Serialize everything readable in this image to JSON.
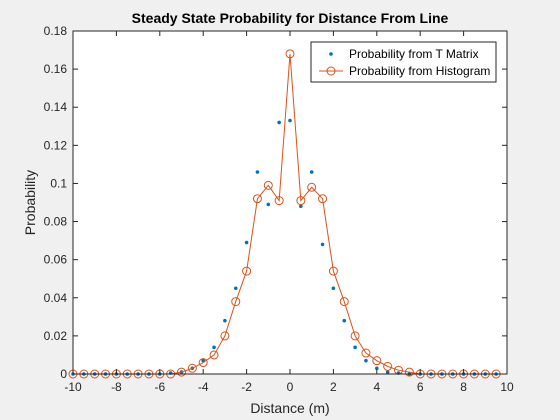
{
  "chart_data": {
    "type": "line",
    "title": "Steady State Probability for Distance From Line",
    "xlabel": "Distance (m)",
    "ylabel": "Probability",
    "xlim": [
      -10,
      10
    ],
    "ylim": [
      0,
      0.18
    ],
    "xticks": [
      -10,
      -8,
      -6,
      -4,
      -2,
      0,
      2,
      4,
      6,
      8,
      10
    ],
    "yticks": [
      0,
      0.02,
      0.04,
      0.06,
      0.08,
      0.1,
      0.12,
      0.14,
      0.16,
      0.18
    ],
    "legend_position": "top-right",
    "series": [
      {
        "name": "Probability from T Matrix",
        "style": "dots",
        "color": "#0072bd",
        "x": [
          -10,
          -9.5,
          -9,
          -8.5,
          -8,
          -7.5,
          -7,
          -6.5,
          -6,
          -5.5,
          -5,
          -4.5,
          -4,
          -3.5,
          -3,
          -2.5,
          -2,
          -1.5,
          -1,
          -0.5,
          0,
          0.5,
          1,
          1.5,
          2,
          2.5,
          3,
          3.5,
          4,
          4.5,
          5,
          5.5,
          6,
          6.5,
          7,
          7.5,
          8,
          8.5,
          9,
          9.5
        ],
        "values": [
          0,
          0,
          0,
          0,
          0,
          0,
          0,
          0,
          0,
          0.0005,
          0.001,
          0.003,
          0.007,
          0.014,
          0.028,
          0.045,
          0.069,
          0.106,
          0.089,
          0.132,
          0.133,
          0.088,
          0.106,
          0.068,
          0.045,
          0.028,
          0.014,
          0.007,
          0.003,
          0.001,
          0.0005,
          0,
          0,
          0,
          0,
          0,
          0,
          0,
          0,
          0
        ]
      },
      {
        "name": "Probability from Histogram",
        "style": "line-circles",
        "color": "#d95319",
        "x": [
          -10,
          -9.5,
          -9,
          -8.5,
          -8,
          -7.5,
          -7,
          -6.5,
          -6,
          -5.5,
          -5,
          -4.5,
          -4,
          -3.5,
          -3,
          -2.5,
          -2,
          -1.5,
          -1,
          -0.5,
          0,
          0.5,
          1,
          1.5,
          2,
          2.5,
          3,
          3.5,
          4,
          4.5,
          5,
          5.5,
          6,
          6.5,
          7,
          7.5,
          8,
          8.5,
          9,
          9.5
        ],
        "values": [
          0,
          0,
          0,
          0,
          0,
          0,
          0,
          0,
          0,
          0,
          0.001,
          0.003,
          0.006,
          0.01,
          0.02,
          0.038,
          0.054,
          0.092,
          0.099,
          0.091,
          0.168,
          0.091,
          0.098,
          0.092,
          0.054,
          0.038,
          0.02,
          0.011,
          0.007,
          0.004,
          0.002,
          0.001,
          0,
          0,
          0,
          0,
          0,
          0,
          0,
          0
        ]
      }
    ]
  }
}
